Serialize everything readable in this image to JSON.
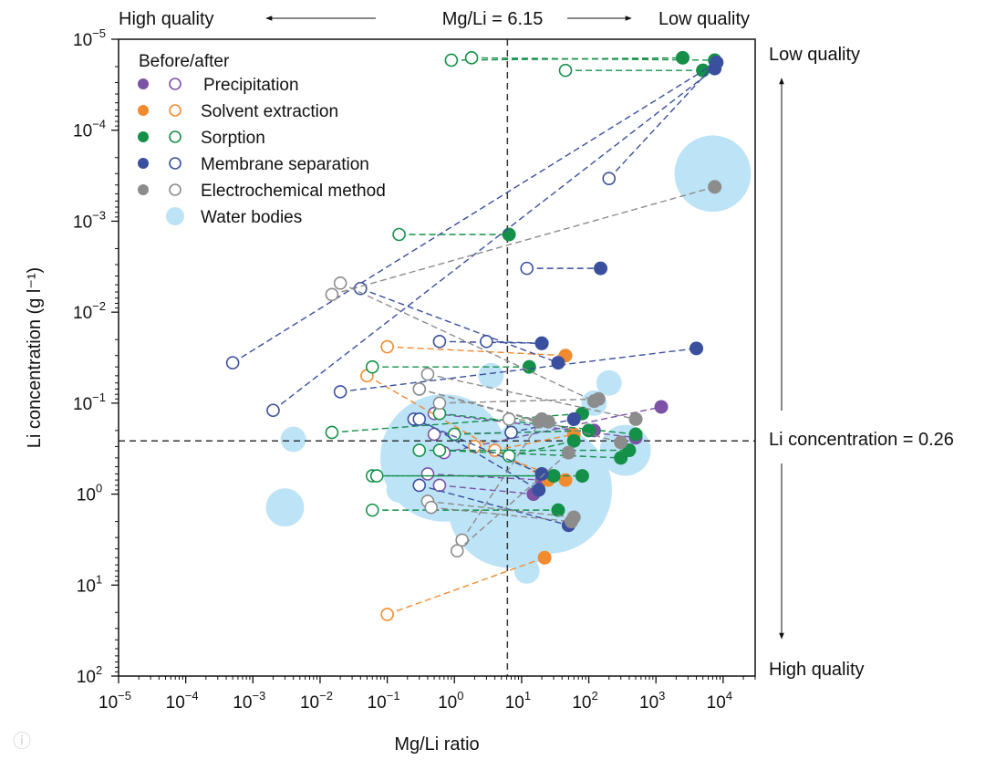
{
  "chart_data": {
    "type": "scatter",
    "xlabel": "Mg/Li ratio",
    "ylabel": "Li concentration (g l⁻¹)",
    "xscale": "log",
    "yscale": "log-inverted",
    "xlim": [
      1e-05,
      30000
    ],
    "ylim": [
      1e-05,
      100
    ],
    "x_ticks": [
      {
        "v": 1e-05,
        "base": "10",
        "exp": "−5"
      },
      {
        "v": 0.0001,
        "base": "10",
        "exp": "−4"
      },
      {
        "v": 0.001,
        "base": "10",
        "exp": "−3"
      },
      {
        "v": 0.01,
        "base": "10",
        "exp": "−2"
      },
      {
        "v": 0.1,
        "base": "10",
        "exp": "−1"
      },
      {
        "v": 1,
        "base": "10",
        "exp": "0"
      },
      {
        "v": 10,
        "base": "10",
        "exp": "1"
      },
      {
        "v": 100,
        "base": "10",
        "exp": "2"
      },
      {
        "v": 1000,
        "base": "10",
        "exp": "3"
      },
      {
        "v": 10000,
        "base": "10",
        "exp": "4"
      }
    ],
    "y_ticks": [
      {
        "v": 1e-05,
        "base": "10",
        "exp": "−5"
      },
      {
        "v": 0.0001,
        "base": "10",
        "exp": "−4"
      },
      {
        "v": 0.001,
        "base": "10",
        "exp": "−3"
      },
      {
        "v": 0.01,
        "base": "10",
        "exp": "−2"
      },
      {
        "v": 0.1,
        "base": "10",
        "exp": "−1"
      },
      {
        "v": 1,
        "base": "10",
        "exp": "0"
      },
      {
        "v": 10,
        "base": "10",
        "exp": "1"
      },
      {
        "v": 100,
        "base": "10",
        "exp": "2"
      }
    ],
    "threshold_x": 6.15,
    "threshold_y": 0.26,
    "top_annotation": {
      "left": "High quality",
      "center": "Mg/Li = 6.15",
      "right": "Low quality"
    },
    "right_annotation": {
      "top": "Low quality",
      "center": "Li concentration = 0.26",
      "bottom": "High quality"
    },
    "legend": {
      "title": "Before/after",
      "placement": "top-left",
      "entries": [
        {
          "name": "Precipitation",
          "color": "#7b52a6"
        },
        {
          "name": "Solvent extraction",
          "color": "#f28a2e"
        },
        {
          "name": "Sorption",
          "color": "#149048"
        },
        {
          "name": "Membrane separation",
          "color": "#3a4f9e"
        },
        {
          "name": "Electrochemical method",
          "color": "#8c8c8c"
        },
        {
          "name": "Water bodies",
          "color": "#bde3f7"
        }
      ]
    },
    "water_bodies": [
      {
        "x": 7000,
        "y": 0.0003,
        "r": 0.06
      },
      {
        "x": 0.7,
        "y": 0.4,
        "r": 0.1
      },
      {
        "x": 7,
        "y": 1.3,
        "r": 0.1
      },
      {
        "x": 25,
        "y": 0.9,
        "r": 0.1
      },
      {
        "x": 3,
        "y": 0.8,
        "r": 0.05
      },
      {
        "x": 0.4,
        "y": 0.2,
        "r": 0.02
      },
      {
        "x": 0.004,
        "y": 0.25,
        "r": 0.02
      },
      {
        "x": 0.003,
        "y": 1.4,
        "r": 0.03
      },
      {
        "x": 0.15,
        "y": 0.9,
        "r": 0.02
      },
      {
        "x": 200,
        "y": 0.06,
        "r": 0.02
      },
      {
        "x": 3.5,
        "y": 0.05,
        "r": 0.02
      },
      {
        "x": 12,
        "y": 7,
        "r": 0.02
      },
      {
        "x": 350,
        "y": 0.33,
        "r": 0.04
      },
      {
        "x": 10,
        "y": 0.3,
        "r": 0.04
      },
      {
        "x": 25,
        "y": 0.4,
        "r": 0.04
      },
      {
        "x": 3,
        "y": 0.5,
        "r": 0.03
      },
      {
        "x": 120,
        "y": 0.1,
        "r": 0.02
      }
    ],
    "series": [
      {
        "name": "Precipitation",
        "color": "#7b52a6",
        "pairs": [
          {
            "before": [
              0.7,
              0.35
            ],
            "after": [
              1200,
              0.11
            ]
          },
          {
            "before": [
              0.5,
              0.22
            ],
            "after": [
              120,
              0.2
            ]
          },
          {
            "before": [
              0.4,
              0.6
            ],
            "after": [
              20,
              0.7
            ]
          },
          {
            "before": [
              0.6,
              0.8
            ],
            "after": [
              15,
              1
            ]
          },
          {
            "before": [
              0.5,
              0.13
            ],
            "after": [
              500,
              0.24
            ]
          }
        ]
      },
      {
        "name": "Solvent extraction",
        "color": "#f28a2e",
        "pairs": [
          {
            "before": [
              0.1,
              0.024
            ],
            "after": [
              45,
              0.03
            ]
          },
          {
            "before": [
              0.05,
              0.05
            ],
            "after": [
              25,
              0.7
            ]
          },
          {
            "before": [
              0.1,
              21
            ],
            "after": [
              22,
              5
            ]
          },
          {
            "before": [
              2,
              0.3
            ],
            "after": [
              45,
              0.7
            ]
          },
          {
            "before": [
              4,
              0.33
            ],
            "after": [
              60,
              0.22
            ]
          }
        ]
      },
      {
        "name": "Sorption",
        "color": "#149048",
        "pairs": [
          {
            "before": [
              0.9,
              1.7e-05
            ],
            "after": [
              2500,
              1.6e-05
            ]
          },
          {
            "before": [
              1.8,
              1.6e-05
            ],
            "after": [
              7500,
              1.7e-05
            ]
          },
          {
            "before": [
              45,
              2.2e-05
            ],
            "after": [
              5000,
              2.2e-05
            ]
          },
          {
            "before": [
              0.15,
              0.0014
            ],
            "after": [
              6.5,
              0.0014
            ]
          },
          {
            "before": [
              0.06,
              0.04
            ],
            "after": [
              13,
              0.04
            ]
          },
          {
            "before": [
              0.015,
              0.21
            ],
            "after": [
              80,
              0.13
            ]
          },
          {
            "before": [
              0.6,
              0.13
            ],
            "after": [
              500,
              0.22
            ]
          },
          {
            "before": [
              0.3,
              0.33
            ],
            "after": [
              400,
              0.33
            ]
          },
          {
            "before": [
              0.6,
              0.33
            ],
            "after": [
              300,
              0.4
            ]
          },
          {
            "before": [
              0.06,
              0.63
            ],
            "after": [
              80,
              0.63
            ]
          },
          {
            "before": [
              0.07,
              0.63
            ],
            "after": [
              30,
              0.63
            ]
          },
          {
            "before": [
              0.06,
              1.5
            ],
            "after": [
              35,
              1.5
            ]
          },
          {
            "before": [
              1,
              0.22
            ],
            "after": [
              100,
              0.2
            ]
          },
          {
            "before": [
              6.5,
              0.38
            ],
            "after": [
              60,
              0.26
            ]
          }
        ]
      },
      {
        "name": "Membrane separation",
        "color": "#3a4f9e",
        "pairs": [
          {
            "before": [
              0.0005,
              0.036
            ],
            "after": [
              8000,
              1.8e-05
            ]
          },
          {
            "before": [
              0.002,
              0.12
            ],
            "after": [
              7500,
              2.1e-05
            ]
          },
          {
            "before": [
              0.02,
              0.075
            ],
            "after": [
              4000,
              0.025
            ]
          },
          {
            "before": [
              200,
              0.00034
            ],
            "after": [
              8000,
              1.8e-05
            ]
          },
          {
            "before": [
              12,
              0.0033
            ],
            "after": [
              150,
              0.0033
            ]
          },
          {
            "before": [
              0.04,
              0.0055
            ],
            "after": [
              35,
              0.036
            ]
          },
          {
            "before": [
              0.6,
              0.021
            ],
            "after": [
              20,
              0.022
            ]
          },
          {
            "before": [
              3,
              0.021
            ],
            "after": [
              20,
              0.022
            ]
          },
          {
            "before": [
              0.25,
              0.15
            ],
            "after": [
              20,
              0.6
            ]
          },
          {
            "before": [
              0.3,
              0.8
            ],
            "after": [
              50,
              2.2
            ]
          },
          {
            "before": [
              7,
              0.21
            ],
            "after": [
              60,
              0.15
            ]
          },
          {
            "before": [
              0.3,
              0.15
            ],
            "after": [
              18,
              0.9
            ]
          }
        ]
      },
      {
        "name": "Electrochemical method",
        "color": "#8c8c8c",
        "pairs": [
          {
            "before": [
              0.015,
              0.0064
            ],
            "after": [
              7500,
              0.00042
            ]
          },
          {
            "before": [
              0.02,
              0.0048
            ],
            "after": [
              120,
              0.095
            ]
          },
          {
            "before": [
              0.4,
              0.048
            ],
            "after": [
              500,
              0.15
            ]
          },
          {
            "before": [
              0.3,
              0.07
            ],
            "after": [
              300,
              0.27
            ]
          },
          {
            "before": [
              0.4,
              1.2
            ],
            "after": [
              60,
              1.8
            ]
          },
          {
            "before": [
              0.45,
              1.4
            ],
            "after": [
              55,
              2
            ]
          },
          {
            "before": [
              1.3,
              3.2
            ],
            "after": [
              20,
              0.15
            ]
          },
          {
            "before": [
              1.1,
              4.2
            ],
            "after": [
              50,
              0.35
            ]
          },
          {
            "before": [
              0.6,
              0.1
            ],
            "after": [
              140,
              0.09
            ]
          },
          {
            "before": [
              0.3,
              0.07
            ],
            "after": [
              18,
              0.16
            ]
          },
          {
            "before": [
              6.5,
              0.15
            ],
            "after": [
              25,
              0.16
            ]
          }
        ]
      }
    ]
  }
}
